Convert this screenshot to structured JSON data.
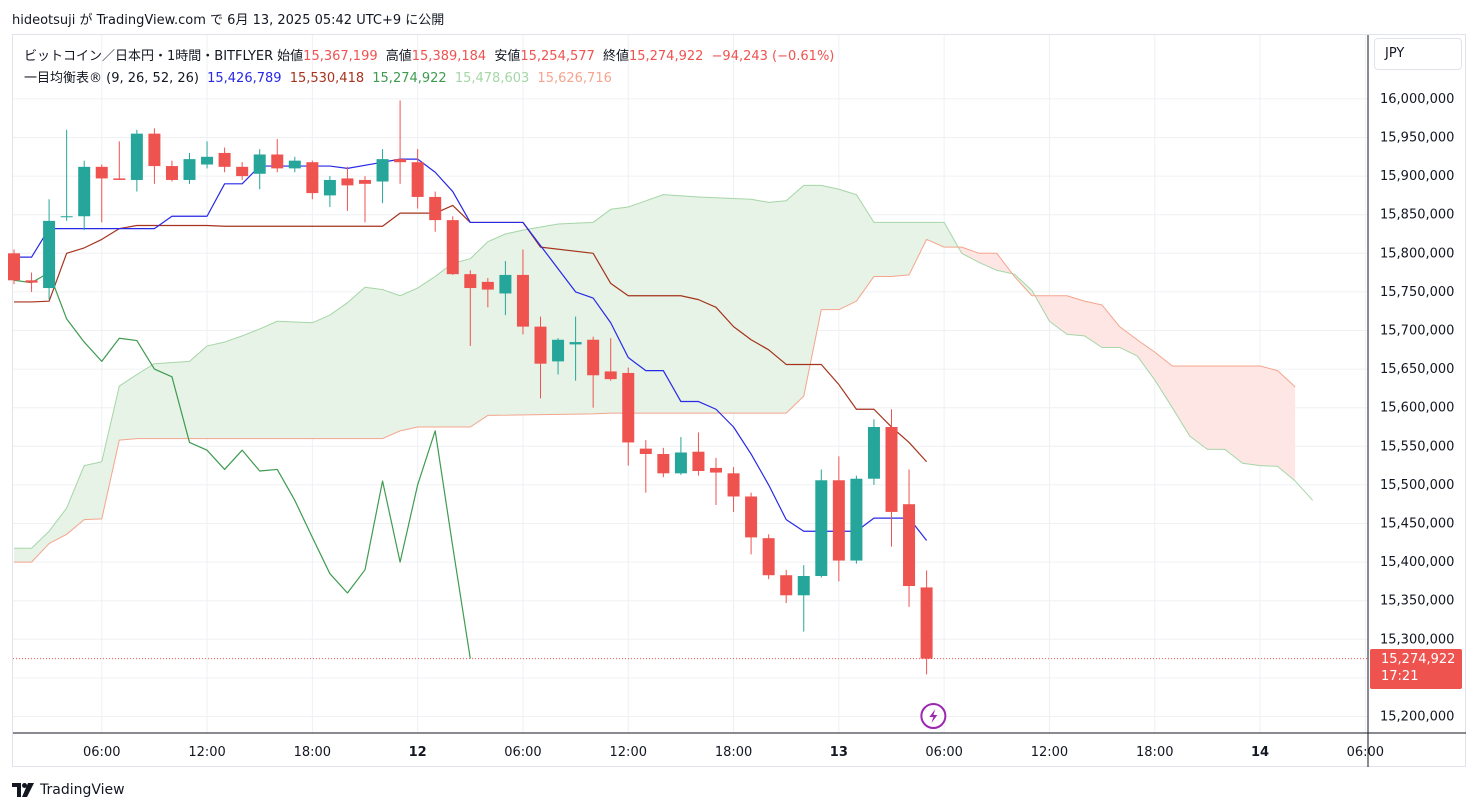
{
  "header": {
    "publish_text": "hideotsuji が TradingView.com で 6月 13, 2025 05:42 UTC+9 に公開"
  },
  "legend": {
    "symbol": "ビットコイン／日本円・1時間・BITFLYER",
    "open_label": "始値",
    "open_value": "15,367,199",
    "high_label": "高値",
    "high_value": "15,389,184",
    "low_label": "安値",
    "low_value": "15,254,577",
    "close_label": "終値",
    "close_value": "15,274,922",
    "change": "−94,243 (−0.61%)",
    "indicator_name": "一目均衡表® (9, 26, 52, 26)",
    "indicator_values": [
      "15,426,789",
      "15,530,418",
      "15,274,922",
      "15,478,603",
      "15,626,716"
    ]
  },
  "price_scale": {
    "currency": "JPY",
    "current_price": "15,274,922",
    "countdown": "17:21"
  },
  "branding": {
    "name": "TradingView"
  },
  "colors": {
    "up": "#26a69a",
    "down": "#ef5350",
    "tenkan": "#2828e8",
    "kijun": "#a5331d",
    "chikou": "#3e9b50",
    "span_a": "#a5d6a7",
    "span_b": "#f4a58e",
    "cloud_bull": "#e6f3e6",
    "cloud_bear": "#fde6e3",
    "grid": "#eef0f4",
    "text": "#131722"
  },
  "chart_data": {
    "type": "candlestick",
    "timeframe": "1時間",
    "x_axis_ticks": [
      "06:00",
      "12:00",
      "18:00",
      "12",
      "06:00",
      "12:00",
      "18:00",
      "13",
      "06:00",
      "12:00",
      "18:00",
      "14",
      "06:00"
    ],
    "y_axis_ticks": [
      15200000,
      15250000,
      15300000,
      15350000,
      15400000,
      15450000,
      15500000,
      15550000,
      15600000,
      15650000,
      15700000,
      15750000,
      15800000,
      15850000,
      15900000,
      15950000,
      16000000
    ],
    "y_axis_labels": [
      "15,200,000",
      "15,300,000",
      "15,350,000",
      "15,400,000",
      "15,450,000",
      "15,500,000",
      "15,550,000",
      "15,600,000",
      "15,650,000",
      "15,700,000",
      "15,750,000",
      "15,800,000",
      "15,850,000",
      "15,900,000",
      "15,950,000",
      "16,000,000"
    ],
    "ylim": [
      15170000,
      16060000
    ],
    "ichimoku_params": [
      9,
      26,
      52,
      26
    ],
    "candles": [
      {
        "o": 15800000,
        "h": 15805000,
        "l": 15760000,
        "c": 15765000
      },
      {
        "o": 15765000,
        "h": 15775000,
        "l": 15750000,
        "c": 15762000
      },
      {
        "o": 15755000,
        "h": 15870000,
        "l": 15740000,
        "c": 15842000
      },
      {
        "o": 15848000,
        "h": 15960000,
        "l": 15842000,
        "c": 15848000
      },
      {
        "o": 15848000,
        "h": 15920000,
        "l": 15830000,
        "c": 15912000
      },
      {
        "o": 15912000,
        "h": 15915000,
        "l": 15840000,
        "c": 15897000
      },
      {
        "o": 15897000,
        "h": 15945000,
        "l": 15895000,
        "c": 15895000
      },
      {
        "o": 15895000,
        "h": 15960000,
        "l": 15880000,
        "c": 15955000
      },
      {
        "o": 15955000,
        "h": 15962000,
        "l": 15890000,
        "c": 15913000
      },
      {
        "o": 15913000,
        "h": 15920000,
        "l": 15893000,
        "c": 15895000
      },
      {
        "o": 15895000,
        "h": 15930000,
        "l": 15890000,
        "c": 15922000
      },
      {
        "o": 15915000,
        "h": 15945000,
        "l": 15910000,
        "c": 15925000
      },
      {
        "o": 15930000,
        "h": 15937000,
        "l": 15905000,
        "c": 15912000
      },
      {
        "o": 15912000,
        "h": 15918000,
        "l": 15895000,
        "c": 15900000
      },
      {
        "o": 15903000,
        "h": 15935000,
        "l": 15883000,
        "c": 15928000
      },
      {
        "o": 15928000,
        "h": 15948000,
        "l": 15905000,
        "c": 15910000
      },
      {
        "o": 15910000,
        "h": 15925000,
        "l": 15905000,
        "c": 15920000
      },
      {
        "o": 15918000,
        "h": 15920000,
        "l": 15870000,
        "c": 15878000
      },
      {
        "o": 15875000,
        "h": 15900000,
        "l": 15860000,
        "c": 15895000
      },
      {
        "o": 15897000,
        "h": 15912000,
        "l": 15855000,
        "c": 15888000
      },
      {
        "o": 15895000,
        "h": 15900000,
        "l": 15840000,
        "c": 15890000
      },
      {
        "o": 15893000,
        "h": 15935000,
        "l": 15865000,
        "c": 15922000
      },
      {
        "o": 15922000,
        "h": 15998000,
        "l": 15890000,
        "c": 15918000
      },
      {
        "o": 15918000,
        "h": 15935000,
        "l": 15858000,
        "c": 15873000
      },
      {
        "o": 15873000,
        "h": 15880000,
        "l": 15828000,
        "c": 15843000
      },
      {
        "o": 15843000,
        "h": 15848000,
        "l": 15772000,
        "c": 15773000
      },
      {
        "o": 15773000,
        "h": 15778000,
        "l": 15680000,
        "c": 15755000
      },
      {
        "o": 15763000,
        "h": 15768000,
        "l": 15730000,
        "c": 15753000
      },
      {
        "o": 15748000,
        "h": 15790000,
        "l": 15720000,
        "c": 15772000
      },
      {
        "o": 15772000,
        "h": 15805000,
        "l": 15695000,
        "c": 15705000
      },
      {
        "o": 15705000,
        "h": 15718000,
        "l": 15612000,
        "c": 15657000
      },
      {
        "o": 15660000,
        "h": 15690000,
        "l": 15643000,
        "c": 15688000
      },
      {
        "o": 15682000,
        "h": 15718000,
        "l": 15635000,
        "c": 15685000
      },
      {
        "o": 15688000,
        "h": 15692000,
        "l": 15600000,
        "c": 15642000
      },
      {
        "o": 15647000,
        "h": 15690000,
        "l": 15635000,
        "c": 15637000
      },
      {
        "o": 15645000,
        "h": 15652000,
        "l": 15525000,
        "c": 15555000
      },
      {
        "o": 15547000,
        "h": 15558000,
        "l": 15490000,
        "c": 15540000
      },
      {
        "o": 15540000,
        "h": 15548000,
        "l": 15510000,
        "c": 15515000
      },
      {
        "o": 15515000,
        "h": 15562000,
        "l": 15513000,
        "c": 15542000
      },
      {
        "o": 15543000,
        "h": 15568000,
        "l": 15512000,
        "c": 15518000
      },
      {
        "o": 15522000,
        "h": 15535000,
        "l": 15474000,
        "c": 15516000
      },
      {
        "o": 15515000,
        "h": 15523000,
        "l": 15465000,
        "c": 15485000
      },
      {
        "o": 15485000,
        "h": 15490000,
        "l": 15410000,
        "c": 15432000
      },
      {
        "o": 15431000,
        "h": 15436000,
        "l": 15378000,
        "c": 15383000
      },
      {
        "o": 15383000,
        "h": 15390000,
        "l": 15347000,
        "c": 15357000
      },
      {
        "o": 15357000,
        "h": 15396000,
        "l": 15310000,
        "c": 15382000
      },
      {
        "o": 15382000,
        "h": 15520000,
        "l": 15380000,
        "c": 15506000
      },
      {
        "o": 15506000,
        "h": 15537000,
        "l": 15375000,
        "c": 15402000
      },
      {
        "o": 15402000,
        "h": 15512000,
        "l": 15398000,
        "c": 15508000
      },
      {
        "o": 15508000,
        "h": 15585000,
        "l": 15500000,
        "c": 15575000
      },
      {
        "o": 15575000,
        "h": 15598000,
        "l": 15420000,
        "c": 15465000
      },
      {
        "o": 15475000,
        "h": 15520000,
        "l": 15342000,
        "c": 15369000
      },
      {
        "o": 15367199,
        "h": 15389184,
        "l": 15254577,
        "c": 15274922
      }
    ],
    "tenkan": [
      [
        0,
        15795000
      ],
      [
        1,
        15795000
      ],
      [
        2,
        15832000
      ],
      [
        8,
        15832000
      ],
      [
        9,
        15848000
      ],
      [
        11,
        15848000
      ],
      [
        12,
        15890000
      ],
      [
        13,
        15890000
      ],
      [
        14,
        15913000
      ],
      [
        18,
        15913000
      ],
      [
        19,
        15910000
      ],
      [
        22,
        15922000
      ],
      [
        23,
        15922000
      ],
      [
        24,
        15905000
      ],
      [
        25,
        15880000
      ],
      [
        26,
        15840000
      ],
      [
        29,
        15840000
      ],
      [
        30,
        15810000
      ],
      [
        31,
        15780000
      ],
      [
        32,
        15750000
      ],
      [
        33,
        15742000
      ],
      [
        34,
        15710000
      ],
      [
        35,
        15665000
      ],
      [
        36,
        15648000
      ],
      [
        37,
        15648000
      ],
      [
        38,
        15608000
      ],
      [
        39,
        15608000
      ],
      [
        40,
        15598000
      ],
      [
        41,
        15575000
      ],
      [
        42,
        15540000
      ],
      [
        43,
        15500000
      ],
      [
        44,
        15455000
      ],
      [
        45,
        15440000
      ],
      [
        48,
        15440000
      ],
      [
        49,
        15457000
      ],
      [
        51,
        15457000
      ],
      [
        52,
        15428000
      ]
    ],
    "kijun": [
      [
        0,
        15737000
      ],
      [
        1,
        15737000
      ],
      [
        2,
        15738000
      ],
      [
        3,
        15800000
      ],
      [
        4,
        15807000
      ],
      [
        5,
        15818000
      ],
      [
        6,
        15832000
      ],
      [
        7,
        15836000
      ],
      [
        11,
        15836000
      ],
      [
        12,
        15835000
      ],
      [
        21,
        15835000
      ],
      [
        22,
        15852000
      ],
      [
        24,
        15852000
      ],
      [
        25,
        15862000
      ],
      [
        26,
        15840000
      ],
      [
        29,
        15840000
      ],
      [
        30,
        15808000
      ],
      [
        33,
        15800000
      ],
      [
        34,
        15761000
      ],
      [
        35,
        15745000
      ],
      [
        38,
        15745000
      ],
      [
        39,
        15740000
      ],
      [
        40,
        15730000
      ],
      [
        41,
        15705000
      ],
      [
        42,
        15688000
      ],
      [
        43,
        15675000
      ],
      [
        44,
        15656000
      ],
      [
        46,
        15656000
      ],
      [
        47,
        15630000
      ],
      [
        48,
        15598000
      ],
      [
        49,
        15598000
      ],
      [
        50,
        15575000
      ],
      [
        51,
        15555000
      ],
      [
        52,
        15530000
      ]
    ],
    "chikou": [
      [
        0,
        15765000
      ],
      [
        1,
        15762000
      ],
      [
        2,
        15775000
      ],
      [
        3,
        15715000
      ],
      [
        4,
        15685000
      ],
      [
        5,
        15660000
      ],
      [
        6,
        15690000
      ],
      [
        7,
        15687000
      ],
      [
        8,
        15650000
      ],
      [
        9,
        15640000
      ],
      [
        10,
        15555000
      ],
      [
        11,
        15545000
      ],
      [
        12,
        15520000
      ],
      [
        13,
        15545000
      ],
      [
        14,
        15518000
      ],
      [
        15,
        15520000
      ],
      [
        16,
        15480000
      ],
      [
        17,
        15432000
      ],
      [
        18,
        15385000
      ],
      [
        19,
        15360000
      ],
      [
        20,
        15390000
      ],
      [
        21,
        15505000
      ],
      [
        22,
        15400000
      ],
      [
        23,
        15500000
      ],
      [
        24,
        15570000
      ],
      [
        25,
        15420000
      ],
      [
        26,
        15275000
      ]
    ],
    "span_a": [
      [
        0,
        15418000
      ],
      [
        1,
        15418000
      ],
      [
        2,
        15440000
      ],
      [
        3,
        15470000
      ],
      [
        4,
        15525000
      ],
      [
        5,
        15530000
      ],
      [
        6,
        15628000
      ],
      [
        7,
        15643000
      ],
      [
        8,
        15657000
      ],
      [
        10,
        15660000
      ],
      [
        11,
        15680000
      ],
      [
        12,
        15685000
      ],
      [
        13,
        15693000
      ],
      [
        14,
        15702000
      ],
      [
        15,
        15712000
      ],
      [
        17,
        15710000
      ],
      [
        18,
        15720000
      ],
      [
        19,
        15736000
      ],
      [
        20,
        15756000
      ],
      [
        21,
        15753000
      ],
      [
        22,
        15745000
      ],
      [
        23,
        15755000
      ],
      [
        24,
        15770000
      ],
      [
        25,
        15787000
      ],
      [
        26,
        15793000
      ],
      [
        27,
        15815000
      ],
      [
        28,
        15825000
      ],
      [
        29,
        15830000
      ],
      [
        31,
        15838000
      ],
      [
        33,
        15840000
      ],
      [
        34,
        15857000
      ],
      [
        35,
        15860000
      ],
      [
        36,
        15868000
      ],
      [
        37,
        15876000
      ],
      [
        39,
        15873000
      ],
      [
        42,
        15870000
      ],
      [
        43,
        15866000
      ],
      [
        44,
        15868000
      ],
      [
        45,
        15888000
      ],
      [
        46,
        15888000
      ],
      [
        47,
        15883000
      ],
      [
        48,
        15876000
      ],
      [
        49,
        15840000
      ],
      [
        53,
        15840000
      ],
      [
        54,
        15800000
      ],
      [
        55,
        15788000
      ],
      [
        56,
        15778000
      ],
      [
        57,
        15773000
      ],
      [
        58,
        15752000
      ],
      [
        59,
        15712000
      ],
      [
        60,
        15695000
      ],
      [
        61,
        15693000
      ],
      [
        62,
        15678000
      ],
      [
        63,
        15678000
      ],
      [
        64,
        15667000
      ],
      [
        65,
        15636000
      ],
      [
        66,
        15600000
      ],
      [
        67,
        15563000
      ],
      [
        68,
        15546000
      ],
      [
        69,
        15546000
      ],
      [
        70,
        15528000
      ],
      [
        71,
        15525000
      ],
      [
        72,
        15524000
      ],
      [
        73,
        15505000
      ],
      [
        74,
        15480000
      ]
    ],
    "span_b": [
      [
        0,
        15400000
      ],
      [
        1,
        15400000
      ],
      [
        2,
        15424000
      ],
      [
        3,
        15436000
      ],
      [
        4,
        15455000
      ],
      [
        5,
        15456000
      ],
      [
        6,
        15558000
      ],
      [
        7,
        15560000
      ],
      [
        21,
        15560000
      ],
      [
        22,
        15570000
      ],
      [
        23,
        15575000
      ],
      [
        26,
        15575000
      ],
      [
        27,
        15590000
      ],
      [
        33,
        15592000
      ],
      [
        34,
        15593000
      ],
      [
        44,
        15593000
      ],
      [
        45,
        15615000
      ],
      [
        46,
        15727000
      ],
      [
        47,
        15727000
      ],
      [
        48,
        15738000
      ],
      [
        49,
        15770000
      ],
      [
        50,
        15770000
      ],
      [
        51,
        15772000
      ],
      [
        52,
        15818000
      ],
      [
        53,
        15808000
      ],
      [
        54,
        15808000
      ],
      [
        55,
        15800000
      ],
      [
        56,
        15800000
      ],
      [
        57,
        15770000
      ],
      [
        58,
        15745000
      ],
      [
        59,
        15745000
      ],
      [
        60,
        15745000
      ],
      [
        61,
        15738000
      ],
      [
        62,
        15733000
      ],
      [
        63,
        15705000
      ],
      [
        64,
        15688000
      ],
      [
        65,
        15672000
      ],
      [
        66,
        15654000
      ],
      [
        67,
        15654000
      ],
      [
        71,
        15654000
      ],
      [
        72,
        15648000
      ],
      [
        73,
        15627000
      ]
    ],
    "current_price": 15274922
  }
}
